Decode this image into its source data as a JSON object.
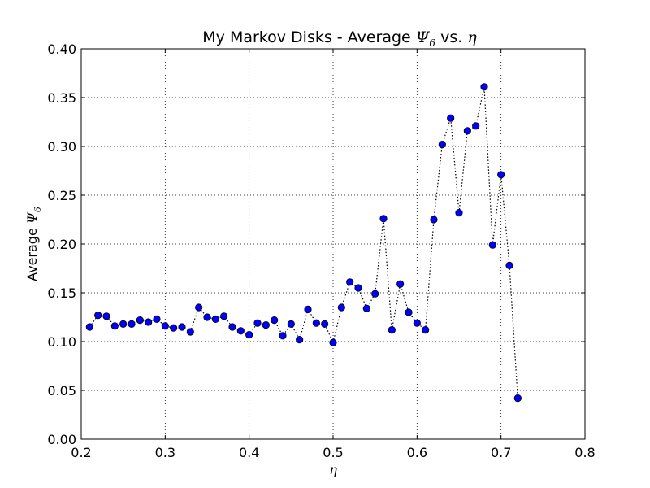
{
  "chart_data": {
    "type": "scatter",
    "title": {
      "prefix": "My Markov Disks - Average ",
      "psi": "Ψ",
      "psi_sub": "6",
      "middle": " vs. ",
      "eta": "η"
    },
    "xlabel": "η",
    "ylabel": {
      "prefix": "Average ",
      "psi": "Ψ",
      "psi_sub": "6"
    },
    "xlim": [
      0.2,
      0.8
    ],
    "ylim": [
      0.0,
      0.4
    ],
    "x_ticks": [
      "0.2",
      "0.3",
      "0.4",
      "0.5",
      "0.6",
      "0.7",
      "0.8"
    ],
    "y_ticks": [
      "0.00",
      "0.05",
      "0.10",
      "0.15",
      "0.20",
      "0.25",
      "0.30",
      "0.35",
      "0.40"
    ],
    "grid": true,
    "line_style": "dotted",
    "marker_color": "#0000ff",
    "line_color": "#000000",
    "series": [
      {
        "x": [
          0.21,
          0.22,
          0.23,
          0.24,
          0.25,
          0.26,
          0.27,
          0.28,
          0.29,
          0.3,
          0.31,
          0.32,
          0.33,
          0.34,
          0.35,
          0.36,
          0.37,
          0.38,
          0.39,
          0.4,
          0.41,
          0.42,
          0.43,
          0.44,
          0.45,
          0.46,
          0.47,
          0.48,
          0.49,
          0.5,
          0.51,
          0.52,
          0.53,
          0.54,
          0.55,
          0.56,
          0.57,
          0.58,
          0.59,
          0.6,
          0.61,
          0.62,
          0.63,
          0.64,
          0.65,
          0.66,
          0.67,
          0.68,
          0.69,
          0.7,
          0.71,
          0.72
        ],
        "y": [
          0.115,
          0.127,
          0.126,
          0.116,
          0.118,
          0.118,
          0.122,
          0.12,
          0.123,
          0.116,
          0.114,
          0.115,
          0.11,
          0.135,
          0.125,
          0.123,
          0.126,
          0.115,
          0.111,
          0.107,
          0.119,
          0.117,
          0.122,
          0.106,
          0.118,
          0.102,
          0.133,
          0.119,
          0.118,
          0.099,
          0.135,
          0.161,
          0.155,
          0.134,
          0.149,
          0.226,
          0.112,
          0.159,
          0.13,
          0.119,
          0.112,
          0.225,
          0.302,
          0.329,
          0.232,
          0.316,
          0.321,
          0.361,
          0.199,
          0.271,
          0.178,
          0.042
        ]
      }
    ]
  }
}
